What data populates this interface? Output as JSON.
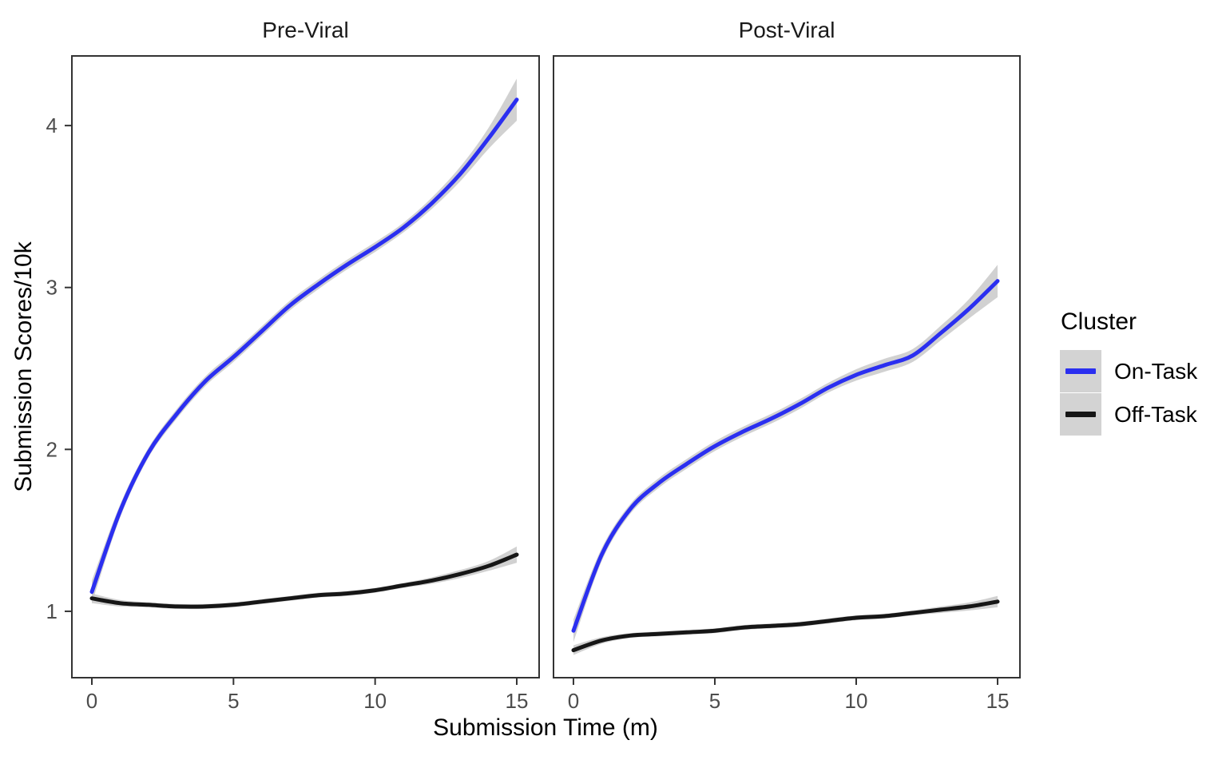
{
  "chart_data": {
    "type": "line",
    "xlabel": "Submission Time (m)",
    "ylabel": "Submission Scores/10k",
    "x_ticks": [
      0,
      5,
      10,
      15
    ],
    "y_ticks": [
      1,
      2,
      3,
      4
    ],
    "xlim": [
      -0.705,
      15.79
    ],
    "ylim": [
      0.59,
      4.43
    ],
    "grid": false,
    "smoothed": true,
    "ribbon_color": "#c9c9c9",
    "x": [
      0,
      1,
      2,
      3,
      4,
      5,
      6,
      7,
      8,
      9,
      10,
      11,
      12,
      13,
      14,
      15
    ],
    "facets": [
      {
        "label": "Pre-Viral",
        "series": [
          {
            "name": "On-Task",
            "color": "#2b2ff0",
            "values": [
              1.12,
              1.62,
              1.98,
              2.22,
              2.42,
              2.57,
              2.73,
              2.89,
              3.02,
              3.14,
              3.25,
              3.37,
              3.52,
              3.7,
              3.92,
              4.16
            ],
            "ci_half_width": [
              0.07,
              0.04,
              0.03,
              0.03,
              0.03,
              0.03,
              0.03,
              0.03,
              0.03,
              0.03,
              0.03,
              0.03,
              0.035,
              0.045,
              0.065,
              0.13
            ]
          },
          {
            "name": "Off-Task",
            "color": "#161616",
            "values": [
              1.08,
              1.05,
              1.04,
              1.03,
              1.03,
              1.04,
              1.06,
              1.08,
              1.1,
              1.11,
              1.13,
              1.16,
              1.19,
              1.23,
              1.28,
              1.35
            ],
            "ci_half_width": [
              0.03,
              0.02,
              0.015,
              0.015,
              0.015,
              0.015,
              0.015,
              0.015,
              0.015,
              0.015,
              0.015,
              0.015,
              0.02,
              0.025,
              0.03,
              0.05
            ]
          }
        ]
      },
      {
        "label": "Post-Viral",
        "series": [
          {
            "name": "On-Task",
            "color": "#2b2ff0",
            "values": [
              0.88,
              1.35,
              1.63,
              1.79,
              1.91,
              2.02,
              2.11,
              2.19,
              2.28,
              2.38,
              2.46,
              2.52,
              2.58,
              2.72,
              2.87,
              3.04
            ],
            "ci_half_width": [
              0.07,
              0.04,
              0.03,
              0.03,
              0.03,
              0.03,
              0.03,
              0.03,
              0.03,
              0.03,
              0.035,
              0.04,
              0.04,
              0.045,
              0.06,
              0.1
            ]
          },
          {
            "name": "Off-Task",
            "color": "#161616",
            "values": [
              0.76,
              0.82,
              0.85,
              0.86,
              0.87,
              0.88,
              0.9,
              0.91,
              0.92,
              0.94,
              0.96,
              0.97,
              0.99,
              1.01,
              1.03,
              1.06
            ],
            "ci_half_width": [
              0.03,
              0.02,
              0.015,
              0.015,
              0.015,
              0.015,
              0.015,
              0.015,
              0.015,
              0.015,
              0.015,
              0.015,
              0.015,
              0.02,
              0.025,
              0.035
            ]
          }
        ]
      }
    ],
    "legend": {
      "title": "Cluster",
      "position": "right",
      "items": [
        {
          "label": "On-Task",
          "color": "#2b2ff0"
        },
        {
          "label": "Off-Task",
          "color": "#161616"
        }
      ]
    },
    "style": {
      "panel_border_color": "#333333",
      "tick_color": "#333333",
      "tick_label_color": "#4d4d4d",
      "legend_key_bg": "#d3d3d3"
    }
  }
}
